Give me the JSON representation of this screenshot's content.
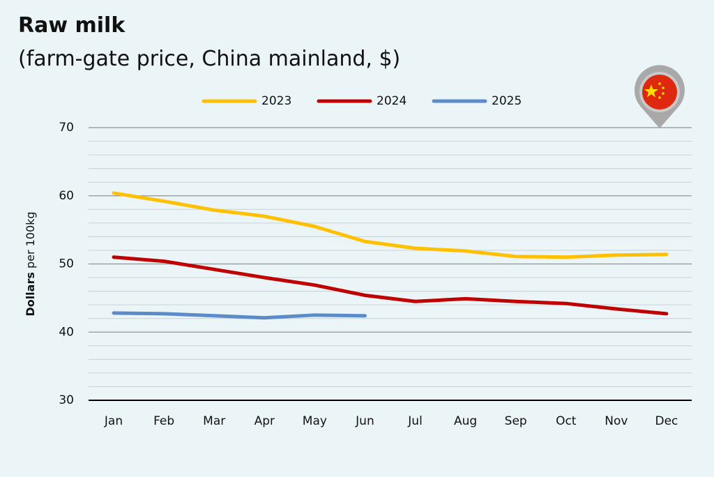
{
  "chart_data": {
    "type": "line",
    "title": "Raw milk",
    "subtitle": "(farm-gate price, China mainland, $)",
    "y_label": "Dollars per 100kg",
    "categories": [
      "Jan",
      "Feb",
      "Mar",
      "Apr",
      "May",
      "Jun",
      "Jul",
      "Aug",
      "Sep",
      "Oct",
      "Nov",
      "Dec"
    ],
    "series": [
      {
        "name": "2023",
        "color": "#ffc000",
        "values": [
          60.4,
          59.2,
          57.9,
          57.0,
          55.5,
          53.3,
          52.3,
          51.9,
          51.1,
          51.0,
          51.3,
          51.4
        ]
      },
      {
        "name": "2024",
        "color": "#c00000",
        "values": [
          51.0,
          50.4,
          49.2,
          48.0,
          46.9,
          45.4,
          44.5,
          44.9,
          44.5,
          44.2,
          43.4,
          42.7
        ]
      },
      {
        "name": "2025",
        "color": "#5b8bc9",
        "values": [
          42.8,
          42.7,
          42.4,
          42.1,
          42.5,
          42.4,
          null,
          null,
          null,
          null,
          null,
          null
        ]
      }
    ],
    "ylim": [
      30,
      70
    ],
    "yticks": [
      30,
      40,
      50,
      60,
      70
    ],
    "minor_yticks": [
      32,
      34,
      36,
      38,
      42,
      44,
      46,
      48,
      52,
      54,
      56,
      58,
      62,
      64,
      66,
      68
    ],
    "grid": true,
    "legend": "top"
  }
}
